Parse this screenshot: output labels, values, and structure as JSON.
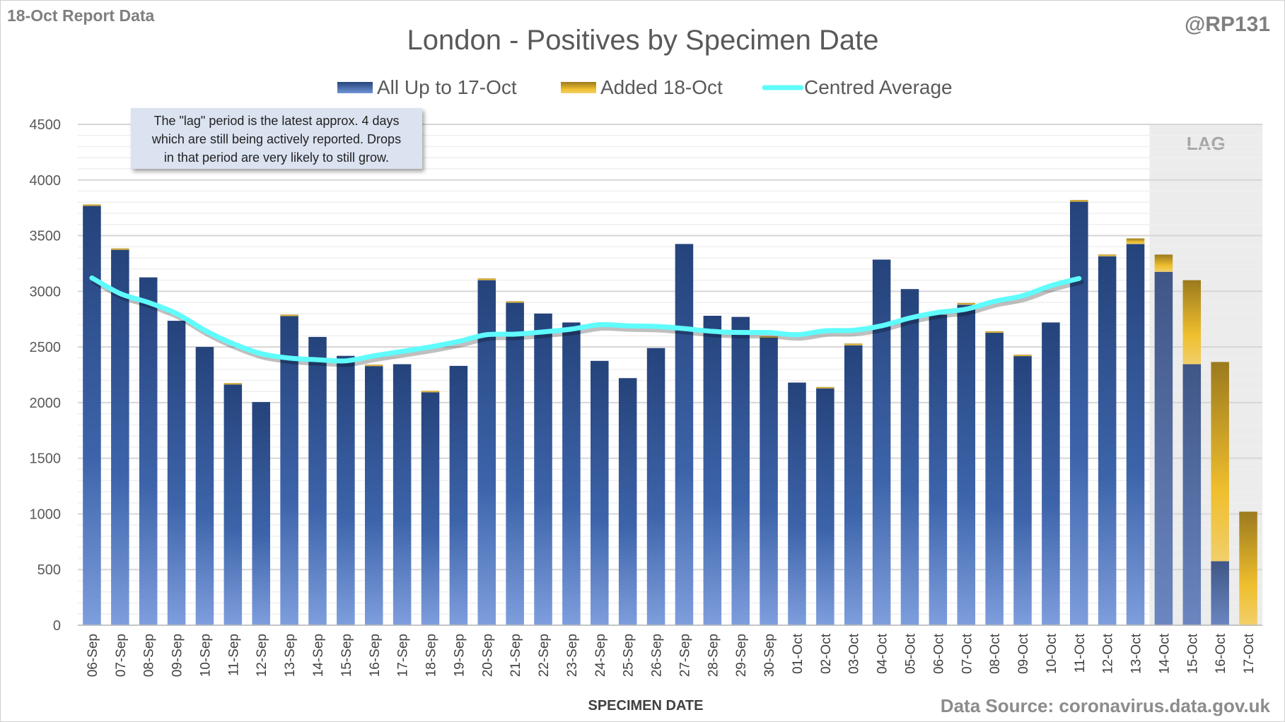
{
  "header": {
    "report_label": "18-Oct Report Data",
    "handle": "@RP131",
    "source": "Data Source: coronavirus.data.gov.uk"
  },
  "annotation": {
    "lines": [
      "The \"lag\" period is the latest approx. 4 days",
      "which are still being actively reported.  Drops",
      "in that period are very likely to still grow."
    ]
  },
  "colors": {
    "blue_top": "#25437b",
    "blue_bottom": "#7a9bdc",
    "gold_top": "#9c7a1e",
    "gold_bottom": "#f2c53a",
    "average": "#5ffcfc",
    "lag_bg": "#ececec"
  },
  "chart_data": {
    "type": "bar",
    "stacked": true,
    "title": "London - Positives by Specimen Date",
    "xlabel": "SPECIMEN DATE",
    "ylabel": "",
    "ylim": [
      0,
      4500
    ],
    "yticks": [
      0,
      500,
      1000,
      1500,
      2000,
      2500,
      3000,
      3500,
      4000,
      4500
    ],
    "grid": true,
    "legend_position": "top",
    "lag_label": "LAG",
    "lag_start": "14-Oct",
    "categories": [
      "06-Sep",
      "07-Sep",
      "08-Sep",
      "09-Sep",
      "10-Sep",
      "11-Sep",
      "12-Sep",
      "13-Sep",
      "14-Sep",
      "15-Sep",
      "16-Sep",
      "17-Sep",
      "18-Sep",
      "19-Sep",
      "20-Sep",
      "21-Sep",
      "22-Sep",
      "23-Sep",
      "24-Sep",
      "25-Sep",
      "26-Sep",
      "27-Sep",
      "28-Sep",
      "29-Sep",
      "30-Sep",
      "01-Oct",
      "02-Oct",
      "03-Oct",
      "04-Oct",
      "05-Oct",
      "06-Oct",
      "07-Oct",
      "08-Oct",
      "09-Oct",
      "10-Oct",
      "11-Oct",
      "12-Oct",
      "13-Oct",
      "14-Oct",
      "15-Oct",
      "16-Oct",
      "17-Oct"
    ],
    "series": [
      {
        "name": "All Up to 17-Oct",
        "type": "bar",
        "values": [
          3770,
          3375,
          3125,
          2735,
          2500,
          2170,
          2005,
          2780,
          2590,
          2420,
          2330,
          2345,
          2095,
          2330,
          3100,
          2900,
          2800,
          2720,
          2375,
          2220,
          2490,
          3425,
          2780,
          2770,
          2590,
          2180,
          2130,
          2515,
          3285,
          3020,
          2790,
          2880,
          2630,
          2420,
          2720,
          3805,
          3315,
          3425,
          3175,
          2345,
          575,
          0
        ]
      },
      {
        "name": "Added 18-Oct",
        "type": "bar",
        "values": [
          10,
          10,
          0,
          0,
          0,
          5,
          0,
          10,
          0,
          0,
          10,
          0,
          10,
          0,
          15,
          10,
          0,
          0,
          0,
          0,
          0,
          0,
          0,
          0,
          5,
          0,
          10,
          15,
          0,
          0,
          0,
          15,
          10,
          10,
          0,
          15,
          15,
          50,
          155,
          755,
          1790,
          1020
        ]
      },
      {
        "name": "Centred Average",
        "type": "line",
        "values": [
          3120,
          2980,
          2900,
          2800,
          2650,
          2530,
          2440,
          2400,
          2385,
          2375,
          2420,
          2460,
          2500,
          2550,
          2610,
          2615,
          2635,
          2660,
          2700,
          2690,
          2685,
          2665,
          2640,
          2630,
          2630,
          2610,
          2645,
          2650,
          2690,
          2760,
          2810,
          2840,
          2910,
          2960,
          3050,
          3115,
          null,
          null,
          null,
          null,
          null,
          null
        ]
      }
    ]
  }
}
